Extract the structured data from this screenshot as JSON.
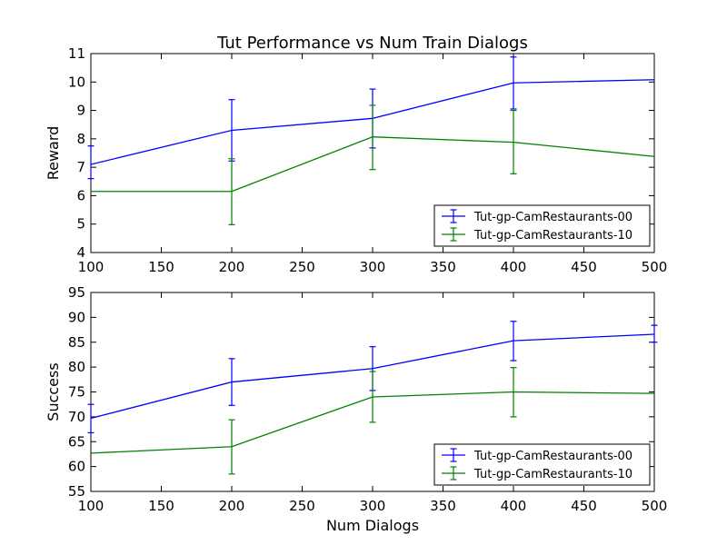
{
  "title": "Tut Performance vs Num Train Dialogs",
  "colors": {
    "series0": "#0000ff",
    "series1": "#008000"
  },
  "chart_data": [
    {
      "type": "line",
      "ylabel": "Reward",
      "xlabel": "",
      "xlim": [
        100,
        500
      ],
      "ylim": [
        4,
        11
      ],
      "xticks": [
        100,
        150,
        200,
        250,
        300,
        350,
        400,
        450,
        500
      ],
      "yticks": [
        4,
        5,
        6,
        7,
        8,
        9,
        10,
        11
      ],
      "x": [
        100,
        200,
        300,
        400,
        500
      ],
      "legend": "lower-right",
      "grid": false,
      "series": [
        {
          "name": "Tut-gp-CamRestaurants-00",
          "color": "#0000ff",
          "values": [
            7.1,
            8.3,
            8.72,
            9.97,
            10.08
          ],
          "err_low": [
            6.6,
            7.22,
            7.68,
            9.05,
            10.08
          ],
          "err_high": [
            7.75,
            9.38,
            9.75,
            10.88,
            10.08
          ]
        },
        {
          "name": "Tut-gp-CamRestaurants-10",
          "color": "#008000",
          "values": [
            6.15,
            6.15,
            8.07,
            7.88,
            7.38
          ],
          "err_low": [
            6.15,
            4.98,
            6.92,
            6.77,
            7.38
          ],
          "err_high": [
            6.15,
            7.3,
            9.18,
            9.0,
            7.38
          ]
        }
      ]
    },
    {
      "type": "line",
      "ylabel": "Success",
      "xlabel": "Num Dialogs",
      "xlim": [
        100,
        500
      ],
      "ylim": [
        55,
        95
      ],
      "xticks": [
        100,
        150,
        200,
        250,
        300,
        350,
        400,
        450,
        500
      ],
      "yticks": [
        55,
        60,
        65,
        70,
        75,
        80,
        85,
        90,
        95
      ],
      "x": [
        100,
        200,
        300,
        400,
        500
      ],
      "legend": "lower-right",
      "grid": false,
      "series": [
        {
          "name": "Tut-gp-CamRestaurants-00",
          "color": "#0000ff",
          "values": [
            69.7,
            77.0,
            79.7,
            85.3,
            86.6
          ],
          "err_low": [
            66.8,
            72.3,
            75.3,
            81.3,
            85.0
          ],
          "err_high": [
            72.5,
            81.7,
            84.1,
            89.2,
            88.4
          ]
        },
        {
          "name": "Tut-gp-CamRestaurants-10",
          "color": "#008000",
          "values": [
            62.7,
            64.0,
            74.0,
            75.0,
            74.7
          ],
          "err_low": [
            62.7,
            58.5,
            68.9,
            70.0,
            74.7
          ],
          "err_high": [
            62.7,
            69.4,
            79.1,
            79.9,
            74.7
          ]
        }
      ]
    }
  ]
}
